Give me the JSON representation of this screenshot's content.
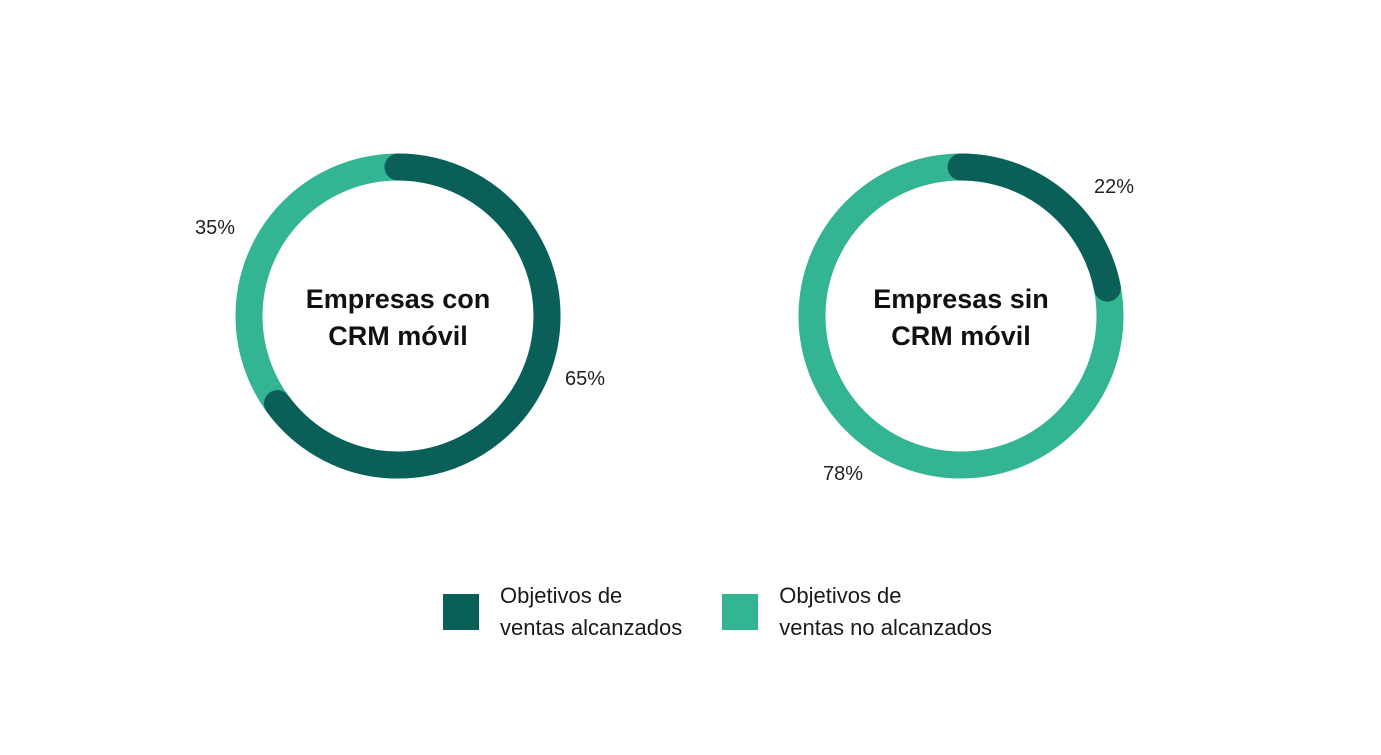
{
  "colors": {
    "alcanzados": "#0b5f59",
    "no_alcanzados": "#33b593"
  },
  "legend": [
    {
      "label": "Objetivos de\nventas alcanzados",
      "color": "#0b5f59"
    },
    {
      "label": "Objetivos de\nventas no alcanzados",
      "color": "#33b593"
    }
  ],
  "chart_data": [
    {
      "type": "pie",
      "variant": "donut",
      "title": [
        "Empresas con",
        "CRM móvil"
      ],
      "slices": [
        {
          "series": "Objetivos de ventas alcanzados",
          "value": 65,
          "label": "65%"
        },
        {
          "series": "Objetivos de ventas no alcanzados",
          "value": 35,
          "label": "35%"
        }
      ]
    },
    {
      "type": "pie",
      "variant": "donut",
      "title": [
        "Empresas sin",
        "CRM móvil"
      ],
      "slices": [
        {
          "series": "Objetivos de ventas alcanzados",
          "value": 22,
          "label": "22%"
        },
        {
          "series": "Objetivos de ventas no alcanzados",
          "value": 78,
          "label": "78%"
        }
      ]
    }
  ]
}
